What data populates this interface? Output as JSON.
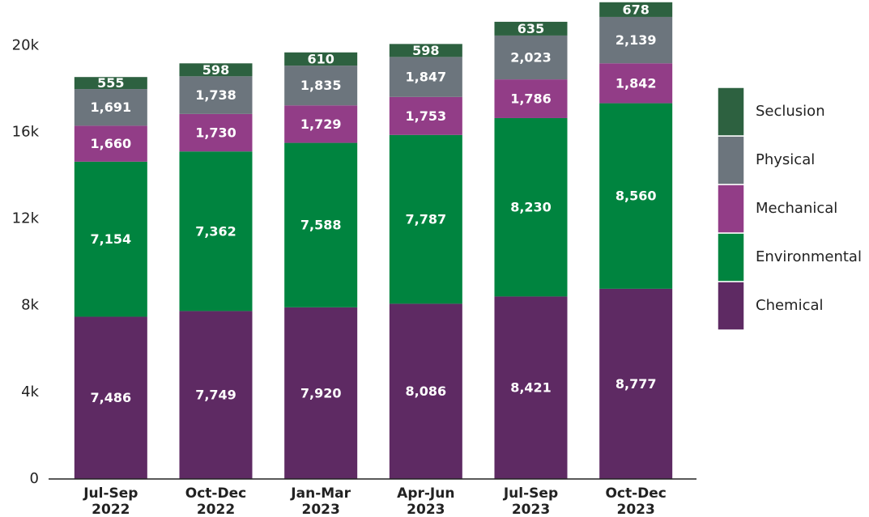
{
  "chart_data": {
    "type": "stacked_bar",
    "categories": [
      "Jul-Sep\n2022",
      "Oct-Dec\n2022",
      "Jan-Mar\n2023",
      "Apr-Jun\n2023",
      "Jul-Sep\n2023",
      "Oct-Dec\n2023"
    ],
    "series": [
      {
        "name": "Chemical",
        "color": "#5e2a63",
        "values": [
          7486,
          7749,
          7920,
          8086,
          8421,
          8777
        ],
        "value_labels": [
          "7,486",
          "7,749",
          "7,920",
          "8,086",
          "8,421",
          "8,777"
        ]
      },
      {
        "name": "Environmental",
        "color": "#00843f",
        "values": [
          7154,
          7362,
          7588,
          7787,
          8230,
          8560
        ],
        "value_labels": [
          "7,154",
          "7,362",
          "7,588",
          "7,787",
          "8,230",
          "8,560"
        ]
      },
      {
        "name": "Mechanical",
        "color": "#923d87",
        "values": [
          1660,
          1730,
          1729,
          1753,
          1786,
          1842
        ],
        "value_labels": [
          "1,660",
          "1,730",
          "1,729",
          "1,753",
          "1,786",
          "1,842"
        ]
      },
      {
        "name": "Physical",
        "color": "#6c757d",
        "values": [
          1691,
          1738,
          1835,
          1847,
          2023,
          2139
        ],
        "value_labels": [
          "1,691",
          "1,738",
          "1,835",
          "1,847",
          "2,023",
          "2,139"
        ]
      },
      {
        "name": "Seclusion",
        "color": "#2d6140",
        "values": [
          555,
          598,
          610,
          598,
          635,
          678
        ]
      }
    ],
    "ylim": [
      0,
      22100
    ],
    "yticks": [
      0,
      {
        "value": 4000,
        "label": "4k"
      },
      {
        "value": 8000,
        "label": "8k"
      },
      {
        "value": 12000,
        "label": "12k"
      },
      {
        "value": 16000,
        "label": "16k"
      },
      {
        "value": 20000,
        "label": "20k"
      }
    ],
    "legend": "right"
  }
}
